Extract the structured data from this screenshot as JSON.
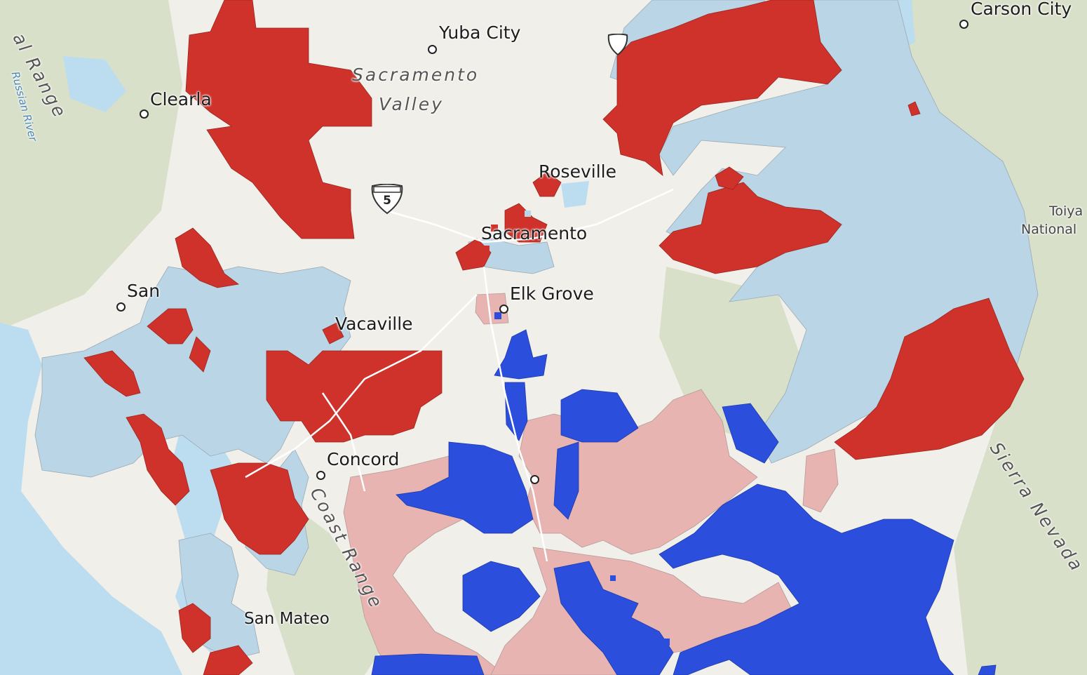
{
  "map": {
    "colors": {
      "water": "#bcdcf0",
      "land": "#f1efe9",
      "terrain": "#d7dec8",
      "dark_red": "#cf322b",
      "light_red": "#e8b4b2",
      "dark_blue": "#2b4fdc",
      "light_blue": "#bad6e6"
    },
    "cities": [
      {
        "name": "Yuba City"
      },
      {
        "name": "Carson City"
      },
      {
        "name": "Clearla"
      },
      {
        "name": "Roseville"
      },
      {
        "name": "Sacramento"
      },
      {
        "name": "San"
      },
      {
        "name": "Elk Grove"
      },
      {
        "name": "Vacaville"
      },
      {
        "name": "Concord"
      },
      {
        "name": "San Mateo"
      }
    ],
    "regions": {
      "sacramento_valley_1": "Sacramento",
      "sacramento_valley_2": "Valley",
      "coastal_range_left": "al Range",
      "coast_range": "Coast Range",
      "sierra_nevada": "Sierra Nevada",
      "river": "Russian River"
    },
    "parks": {
      "line1": "Toiya",
      "line2": "National"
    },
    "interstate": {
      "number": "5"
    }
  }
}
